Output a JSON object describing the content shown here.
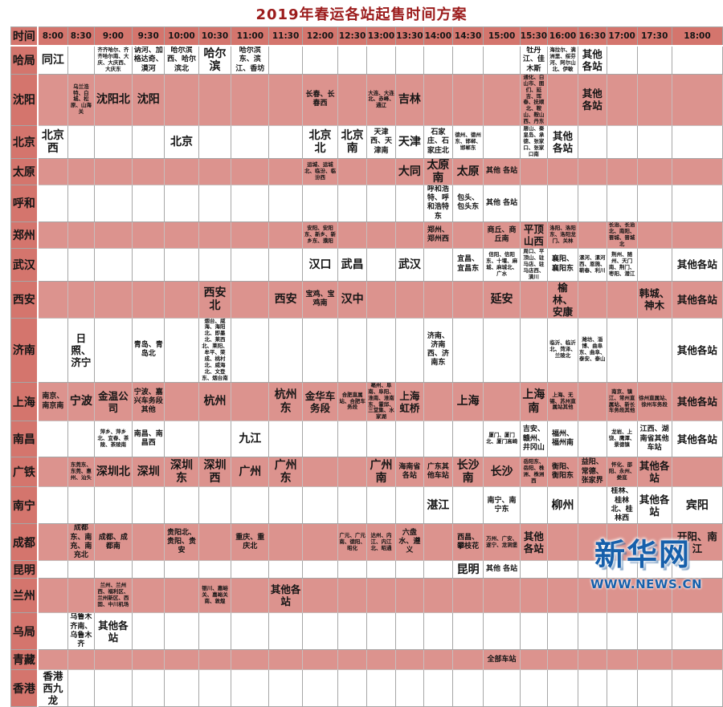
{
  "title": "2019年春运各站起售时间方案",
  "logo": {
    "name": "新华网",
    "url_text": "WWW.NEWS.CN"
  },
  "colors": {
    "title_color": "#9b1b1b",
    "header_bg": "#d4756d",
    "label_bg": "#d4756d",
    "row_pink": "#dc938e",
    "row_white": "#ffffff",
    "logo_blue": "#1760ab"
  },
  "table": {
    "time_header_label": "时间",
    "times": [
      "8:00",
      "8:30",
      "9:00",
      "9:30",
      "10:00",
      "10:30",
      "11:00",
      "11:30",
      "12:00",
      "12:30",
      "13:00",
      "13:30",
      "14:00",
      "14:30",
      "15:00",
      "15:30",
      "16:00",
      "16:30",
      "17:00",
      "17:30",
      "18:00"
    ],
    "rows": [
      {
        "bureau": "哈局",
        "shaded": false,
        "cells": {
          "8:00": "同江",
          "9:00": "齐齐哈尔、齐齐哈尔南、大庆、大庆西、大庆东",
          "9:30": "讷河、加格达奇、漠河",
          "10:00": "哈尔滨西、哈尔滨北",
          "10:30": "哈尔滨",
          "11:00": "哈尔滨东、滨江、香坊",
          "15:30": "牡丹江、佳木斯",
          "16:00": "海拉尔、满洲里、绥芬河、阿尔山北、伊敏",
          "16:30": "其他各站"
        }
      },
      {
        "bureau": "沈阳",
        "shaded": true,
        "cells": {
          "8:30": "乌兰浩特、白城、松原、山海关",
          "9:00": "沈阳北",
          "9:30": "沈阳",
          "12:00": "长春、长春西",
          "13:00": "大连、大连北、赤峰、通辽",
          "13:30": "吉林",
          "15:30": "通化、白山市、图们、延吉、珲春、抚顺北、鞍山、鞍山西、丹东",
          "16:30": "其他各站"
        }
      },
      {
        "bureau": "北京",
        "shaded": false,
        "cells": {
          "8:00": "北京西",
          "10:00": "北京",
          "12:00": "北京北",
          "12:30": "北京南",
          "13:00": "天津西、天津南",
          "13:30": "天津",
          "14:00": "石家庄、石家庄北",
          "14:30": "德州、德州东、邯郸、邯郸东",
          "15:30": "唐山、秦皇岛、承德、张家口、张家口南",
          "16:00": "其他各站"
        }
      },
      {
        "bureau": "太原",
        "shaded": true,
        "cells": {
          "12:00": "运城、运城北、临汾、临汾西",
          "13:30": "大同",
          "14:00": "太原南",
          "14:30": "太原",
          "15:00": "其他 各站"
        }
      },
      {
        "bureau": "呼和",
        "shaded": false,
        "cells": {
          "14:00": "呼和浩特、呼和浩特东",
          "14:30": "包头、包头东",
          "15:00": "其他 各站"
        }
      },
      {
        "bureau": "郑州",
        "shaded": true,
        "cells": {
          "12:00": "安阳、安阳东、新乡、新乡东、濮阳",
          "14:00": "郑州、郑州西",
          "15:00": "商丘、商丘南",
          "15:30": "平顶山西",
          "16:00": "洛阳、洛阳东、洛阳龙门、关林",
          "17:00": "长治、长治北、南阳、晋城、晋城北"
        }
      },
      {
        "bureau": "武汉",
        "shaded": false,
        "cells": {
          "12:00": "汉口",
          "12:30": "武昌",
          "13:30": "武汉",
          "14:30": "宜昌、宜昌东",
          "15:00": "信阳、信阳东、十堰、麻城、麻城北、广水",
          "15:30": "周口、平顶山、驻马店、驻马店西、潢川",
          "16:00": "襄阳、襄阳东",
          "16:30": "漯河、漯河西、恩施、蕲春、利川",
          "17:00": "荆州、随州、天门南、荆门、枣阳、潜江",
          "18:00": "其他各站"
        }
      },
      {
        "bureau": "西安",
        "shaded": true,
        "cells": {
          "10:30": "西安北",
          "11:30": "西安",
          "12:00": "宝鸡、宝鸡南",
          "12:30": "汉中",
          "15:00": "延安",
          "16:00": "榆林、安康",
          "17:30": "韩城、神木",
          "18:00": "其他各站"
        }
      },
      {
        "bureau": "济南",
        "shaded": false,
        "cells": {
          "8:30": "日照、济宁",
          "9:30": "青岛、青岛北",
          "10:30": "烟台、威海、海阳北、即墨北、莱西北、莱阳、牟平、荣成、桃村北、威海北、文登东、烟台南",
          "14:00": "济南、济南西、济南东",
          "16:00": "临沂、临沂北、菏泽、兰陵北",
          "16:30": "潍坊、淄博、曲阜东、曲阜、泰安、泰山",
          "18:00": "其他各站"
        }
      },
      {
        "bureau": "上海",
        "shaded": true,
        "cells": {
          "8:00": "南京、南京南",
          "8:30": "宁波",
          "9:00": "金温公司",
          "9:30": "宁波、嘉兴车务段其他",
          "10:30": "杭州",
          "11:30": "杭州东",
          "12:00": "金华车务段",
          "12:30": "合肥直属站、合肥车务段",
          "13:00": "亳州、阜南、阜阳、淮南、淮南东、霍邱、三堂集、水家湖",
          "13:30": "上海虹桥",
          "14:30": "上海",
          "15:30": "上海南",
          "16:00": "上海、无锡、苏州直属站其他",
          "17:00": "南京、镇江、常州直属站、新长车务段其他",
          "17:30": "徐州直属站、徐州车务段",
          "18:00": "其他各站"
        }
      },
      {
        "bureau": "南昌",
        "shaded": false,
        "cells": {
          "9:00": "萍乡、萍乡北、宜春、茶陵、茶陵南",
          "9:30": "南昌、南昌西",
          "11:00": "九江",
          "15:00": "厦门、厦门北、厦门高崎",
          "15:30": "吉安、赣州、井冈山",
          "16:00": "福州、福州南",
          "17:00": "龙岩、上饶、鹰潭、景德镇",
          "17:30": "江西、湖南省其他车站",
          "18:00": "其他各站"
        }
      },
      {
        "bureau": "广铁",
        "shaded": true,
        "cells": {
          "8:30": "东莞东、东莞、惠州、汕头",
          "9:00": "深圳北",
          "9:30": "深圳",
          "10:00": "深圳东",
          "10:30": "深圳西",
          "11:00": "广州",
          "11:30": "广州东",
          "13:00": "广州南",
          "13:30": "海南省各站",
          "14:00": "广东其他车站",
          "14:30": "长沙南",
          "15:00": "长沙",
          "15:30": "岳阳东、岳阳、株洲、株洲西",
          "16:00": "衡阳、衡阳东",
          "16:30": "益阳、常德、张家界",
          "17:00": "怀化、邵阳、永州、娄底",
          "17:30": "其他各站"
        }
      },
      {
        "bureau": "南宁",
        "shaded": false,
        "cells": {
          "14:00": "湛江",
          "15:00": "南宁、南宁东",
          "16:00": "柳州",
          "17:00": "桂林、桂林北、桂林西",
          "17:30": "其他各站",
          "18:00": "宾阳"
        }
      },
      {
        "bureau": "成都",
        "shaded": true,
        "cells": {
          "8:30": "成都东、南充、南充北",
          "9:00": "成都、成都南",
          "10:00": "贵阳北、贵阳、贵安",
          "11:00": "重庆、重庆北",
          "12:30": "广元、广元南、德阳、昭化",
          "13:00": "达州、内江、内江北、昭通",
          "13:30": "六盘水、遵义",
          "14:30": "西昌、攀枝花",
          "15:00": "万州、广安、遂宁、龙洞堡",
          "15:30": "其他各站",
          "18:00": "开阳、南江"
        }
      },
      {
        "bureau": "昆明",
        "shaded": false,
        "cells": {
          "14:30": "昆明",
          "15:00": "其他 各站"
        }
      },
      {
        "bureau": "兰州",
        "shaded": true,
        "cells": {
          "9:00": "兰州、兰州西、福利区、兰州新区、西固、中川机场",
          "10:30": "银川、嘉峪关、嘉峪关南、敦煌",
          "11:30": "其他各站"
        }
      },
      {
        "bureau": "乌局",
        "shaded": false,
        "cells": {
          "8:30": "乌鲁木齐南、乌鲁木齐",
          "9:00": "其他各站"
        }
      },
      {
        "bureau": "青藏",
        "shaded": true,
        "cells": {
          "15:00": "全部车站"
        }
      },
      {
        "bureau": "香港",
        "shaded": false,
        "cells": {
          "8:00": "香港西九龙"
        }
      }
    ]
  }
}
